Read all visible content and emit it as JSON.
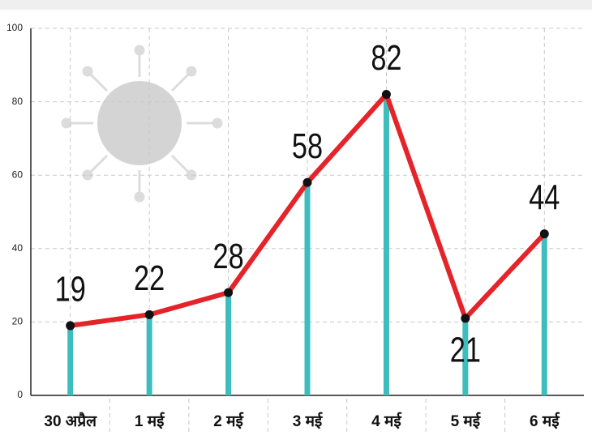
{
  "chart_data": {
    "type": "line",
    "categories": [
      "30 अप्रैल",
      "1 मई",
      "2 मई",
      "3 मई",
      "4 मई",
      "5 मई",
      "6 मई"
    ],
    "values": [
      19,
      22,
      28,
      58,
      82,
      21,
      44
    ],
    "color": "#e5242a",
    "stem_color": "#3dbdbd",
    "ylim": [
      0,
      100
    ],
    "yticks": [
      0,
      20,
      40,
      60,
      80,
      100
    ],
    "grid": true
  }
}
